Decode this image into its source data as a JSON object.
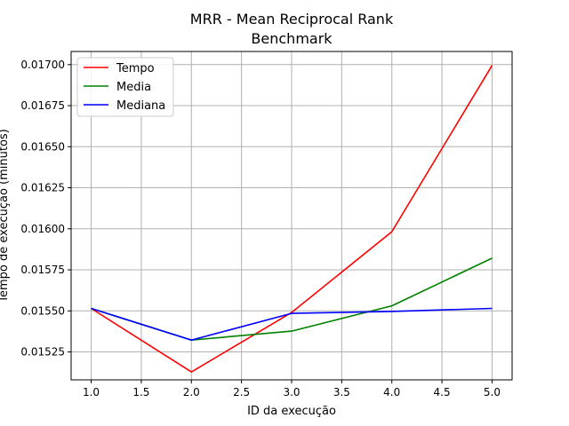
{
  "chart_data": {
    "type": "line",
    "title": "MRR - Mean Reciprocal Rank",
    "subtitle": "Benchmark",
    "xlabel": "ID da execução",
    "ylabel": "Tempo de execução (minutos)",
    "xlim": [
      0.8,
      5.2
    ],
    "ylim": [
      0.01508,
      0.01708
    ],
    "xticks": [
      1.0,
      1.5,
      2.0,
      2.5,
      3.0,
      3.5,
      4.0,
      4.5,
      5.0
    ],
    "xtick_labels": [
      "1.0",
      "1.5",
      "2.0",
      "2.5",
      "3.0",
      "3.5",
      "4.0",
      "4.5",
      "5.0"
    ],
    "yticks": [
      0.01525,
      0.0155,
      0.01575,
      0.016,
      0.01625,
      0.0165,
      0.01675,
      0.017
    ],
    "ytick_labels": [
      "0.01525",
      "0.01550",
      "0.01575",
      "0.01600",
      "0.01625",
      "0.01650",
      "0.01675",
      "0.01700"
    ],
    "grid": true,
    "legend_position": "top-left",
    "x": [
      1,
      2,
      3,
      4,
      5
    ],
    "series": [
      {
        "name": "Tempo",
        "color": "#ff0000",
        "values": [
          0.015515,
          0.015128,
          0.01549,
          0.015982,
          0.016995
        ]
      },
      {
        "name": "Media",
        "color": "#008000",
        "values": [
          0.015515,
          0.015322,
          0.015377,
          0.015531,
          0.015821
        ]
      },
      {
        "name": "Mediana",
        "color": "#0000ff",
        "values": [
          0.015515,
          0.015322,
          0.015485,
          0.015497,
          0.015515
        ]
      }
    ]
  }
}
